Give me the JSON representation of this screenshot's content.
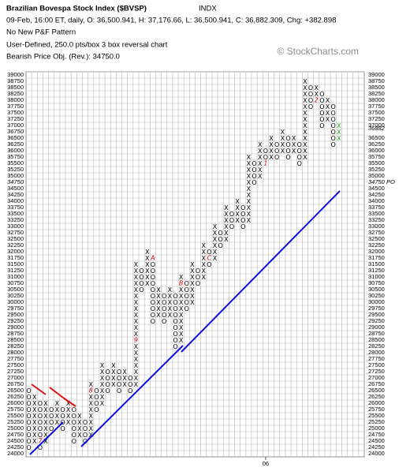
{
  "chart_data": {
    "type": "pnf",
    "title": "Brazilian Bovespa Stock Index ($BVSP)",
    "exchange": "INDX",
    "subtitle": "09-Feb, 16:00 ET, daily, O: 36,500.941, H: 37,176.66, L: 36,500.941, C: 36,882.309, Chg: +382.898",
    "pattern": "No New P&F Pattern",
    "settings": "User-Defined, 250.0 pts/box 3 box reversal chart",
    "objective_note": "Bearish Price Obj. (Rev.): 34750.0",
    "watermark": "© StockCharts.com",
    "ylim": [
      24000,
      39000
    ],
    "yticks": [
      24000,
      24250,
      24500,
      24750,
      25000,
      25250,
      25500,
      25750,
      26000,
      26250,
      26500,
      26750,
      27000,
      27250,
      27500,
      27750,
      28000,
      28250,
      28500,
      28750,
      29000,
      29250,
      29500,
      29750,
      30000,
      30250,
      30500,
      30750,
      31000,
      31250,
      31500,
      31750,
      32000,
      32250,
      32500,
      32750,
      33000,
      33250,
      33500,
      33750,
      34000,
      34250,
      34500,
      34750,
      35000,
      35250,
      35500,
      35750,
      36000,
      36250,
      36500,
      36750,
      37000,
      37250,
      37500,
      37750,
      38000,
      38250,
      38500,
      38750,
      39000
    ],
    "last_price": 36882,
    "price_objective": {
      "value": 34750,
      "label": "34750 PO"
    },
    "grid": true,
    "box_color": "#000000",
    "marker_color": "#cc0000",
    "last_column_color": "#22aa22",
    "highlight_color": "#cc0000",
    "columns": [
      {
        "type": "O",
        "high": 26500,
        "low": 24250
      },
      {
        "type": "X",
        "high": 26250,
        "low": 24500
      },
      {
        "type": "O",
        "high": 26000,
        "low": 24250,
        "markers": [
          {
            "value": 24500,
            "label": "7"
          }
        ]
      },
      {
        "type": "X",
        "high": 26000,
        "low": 24500
      },
      {
        "type": "O",
        "high": 25750,
        "low": 25000
      },
      {
        "type": "X",
        "high": 26000,
        "low": 25250
      },
      {
        "type": "O",
        "high": 25750,
        "low": 25000
      },
      {
        "type": "X",
        "high": 26000,
        "low": 25250
      },
      {
        "type": "O",
        "high": 25750,
        "low": 24500
      },
      {
        "type": "X",
        "high": 25500,
        "low": 24750
      },
      {
        "type": "O",
        "high": 25250,
        "low": 24500
      },
      {
        "type": "X",
        "high": 26750,
        "low": 24750,
        "markers": [
          {
            "value": 26500,
            "label": "8"
          }
        ]
      },
      {
        "type": "O",
        "high": 26500,
        "low": 25750
      },
      {
        "type": "X",
        "high": 27500,
        "low": 26000
      },
      {
        "type": "O",
        "high": 27250,
        "low": 26500
      },
      {
        "type": "X",
        "high": 27500,
        "low": 26750
      },
      {
        "type": "O",
        "high": 27250,
        "low": 26500
      },
      {
        "type": "X",
        "high": 27250,
        "low": 26750
      },
      {
        "type": "O",
        "high": 27000,
        "low": 26500
      },
      {
        "type": "X",
        "high": 31500,
        "low": 26750,
        "markers": [
          {
            "value": 28500,
            "label": "9"
          }
        ]
      },
      {
        "type": "O",
        "high": 31250,
        "low": 30500
      },
      {
        "type": "X",
        "high": 32000,
        "low": 30750
      },
      {
        "type": "O",
        "high": 31750,
        "low": 29250,
        "markers": [
          {
            "value": 31750,
            "label": "A"
          }
        ]
      },
      {
        "type": "X",
        "high": 30500,
        "low": 29500
      },
      {
        "type": "O",
        "high": 30250,
        "low": 29250
      },
      {
        "type": "X",
        "high": 30500,
        "low": 29500
      },
      {
        "type": "O",
        "high": 30250,
        "low": 28250
      },
      {
        "type": "X",
        "high": 31000,
        "low": 28500,
        "markers": [
          {
            "value": 30750,
            "label": "B"
          }
        ]
      },
      {
        "type": "O",
        "high": 30750,
        "low": 29750
      },
      {
        "type": "X",
        "high": 31500,
        "low": 30000
      },
      {
        "type": "O",
        "high": 31250,
        "low": 30750
      },
      {
        "type": "X",
        "high": 32250,
        "low": 31000
      },
      {
        "type": "O",
        "high": 32000,
        "low": 31500,
        "markers": [
          {
            "value": 31750,
            "label": "C"
          }
        ]
      },
      {
        "type": "X",
        "high": 33000,
        "low": 31750
      },
      {
        "type": "O",
        "high": 32750,
        "low": 32250
      },
      {
        "type": "X",
        "high": 33750,
        "low": 32500
      },
      {
        "type": "O",
        "high": 33500,
        "low": 33000
      },
      {
        "type": "X",
        "high": 34000,
        "low": 33250
      },
      {
        "type": "O",
        "high": 33750,
        "low": 33000
      },
      {
        "type": "X",
        "high": 35750,
        "low": 33250
      },
      {
        "type": "O",
        "high": 35500,
        "low": 34750
      },
      {
        "type": "X",
        "high": 36250,
        "low": 35000
      },
      {
        "type": "O",
        "high": 36000,
        "low": 35500,
        "markers": [
          {
            "value": 35500,
            "label": "1"
          }
        ],
        "axis_label": "06"
      },
      {
        "type": "X",
        "high": 36500,
        "low": 35750
      },
      {
        "type": "O",
        "high": 36250,
        "low": 35750
      },
      {
        "type": "X",
        "high": 36750,
        "low": 36000
      },
      {
        "type": "O",
        "high": 36500,
        "low": 35750
      },
      {
        "type": "X",
        "high": 36500,
        "low": 36000
      },
      {
        "type": "O",
        "high": 36250,
        "low": 35500
      },
      {
        "type": "X",
        "high": 38750,
        "low": 35750
      },
      {
        "type": "O",
        "high": 38500,
        "low": 37750
      },
      {
        "type": "X",
        "high": 38500,
        "low": 38000,
        "markers": [
          {
            "value": 38000,
            "label": "2"
          }
        ]
      },
      {
        "type": "O",
        "high": 38250,
        "low": 37000
      },
      {
        "type": "X",
        "high": 38000,
        "low": 37250
      },
      {
        "type": "O",
        "high": 37750,
        "low": 36250
      },
      {
        "type": "X",
        "high": 37000,
        "low": 36500
      }
    ]
  }
}
